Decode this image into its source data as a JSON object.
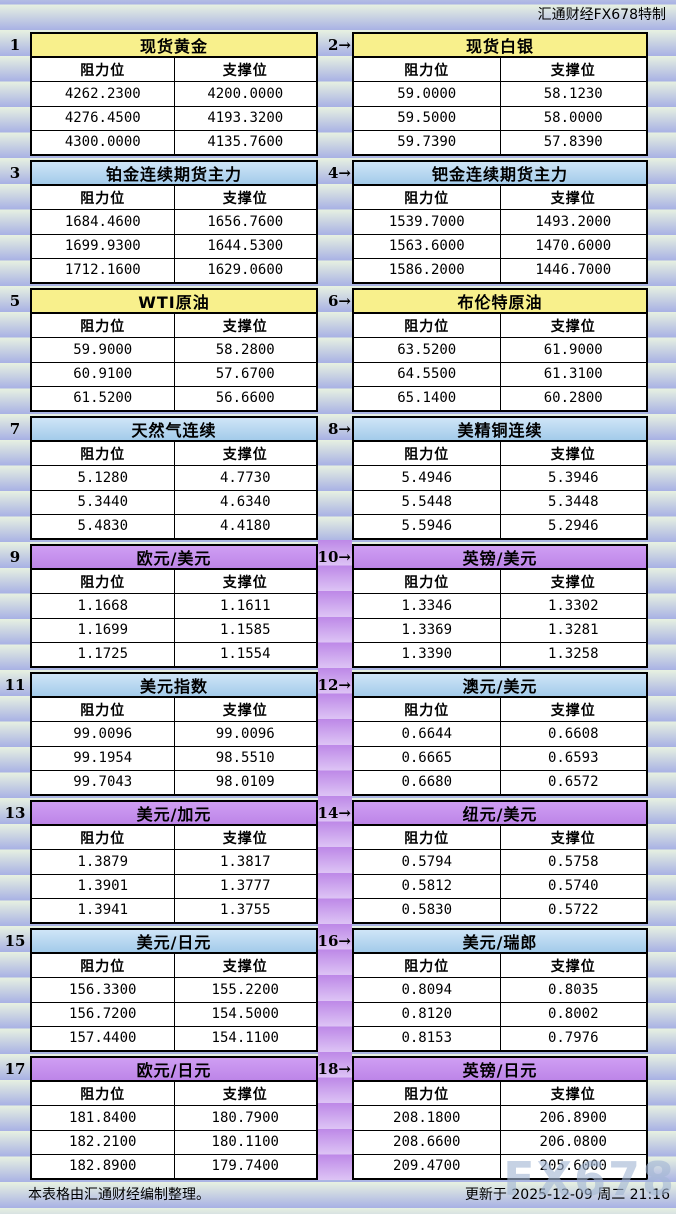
{
  "header": {
    "brand": "汇通财经FX678特制"
  },
  "footer": {
    "source_note": "本表格由汇通财经编制整理。",
    "update_time": "更新于 2025-12-09 周二 21:16"
  },
  "watermark": "FX678",
  "labels": {
    "resistance": "阻力位",
    "support": "支撑位"
  },
  "colors": {
    "title_yellow": "#f8f08c",
    "title_blue": "#b4d6ee",
    "title_purple": "#c792ee",
    "stripe_light": "#e7f1e1",
    "stripe_dark": "#a8b1e4",
    "purple_stripe_dark": "#bd88e7",
    "purple_stripe_light": "#ddc4f5"
  },
  "chart_data": [
    {
      "type": "table",
      "num": "1",
      "title": "现货黄金",
      "style": "yellow",
      "columns": [
        "阻力位",
        "支撑位"
      ],
      "rows": [
        [
          "4262.2300",
          "4200.0000"
        ],
        [
          "4276.4500",
          "4193.3200"
        ],
        [
          "4300.0000",
          "4135.7600"
        ]
      ]
    },
    {
      "type": "table",
      "num": "2→",
      "title": "现货白银",
      "style": "yellow",
      "columns": [
        "阻力位",
        "支撑位"
      ],
      "rows": [
        [
          "59.0000",
          "58.1230"
        ],
        [
          "59.5000",
          "58.0000"
        ],
        [
          "59.7390",
          "57.8390"
        ]
      ]
    },
    {
      "type": "table",
      "num": "3",
      "title": "铂金连续期货主力",
      "style": "blue",
      "columns": [
        "阻力位",
        "支撑位"
      ],
      "rows": [
        [
          "1684.4600",
          "1656.7600"
        ],
        [
          "1699.9300",
          "1644.5300"
        ],
        [
          "1712.1600",
          "1629.0600"
        ]
      ]
    },
    {
      "type": "table",
      "num": "4→",
      "title": "钯金连续期货主力",
      "style": "blue",
      "columns": [
        "阻力位",
        "支撑位"
      ],
      "rows": [
        [
          "1539.7000",
          "1493.2000"
        ],
        [
          "1563.6000",
          "1470.6000"
        ],
        [
          "1586.2000",
          "1446.7000"
        ]
      ]
    },
    {
      "type": "table",
      "num": "5",
      "title": "WTI原油",
      "style": "yellow",
      "columns": [
        "阻力位",
        "支撑位"
      ],
      "rows": [
        [
          "59.9000",
          "58.2800"
        ],
        [
          "60.9100",
          "57.6700"
        ],
        [
          "61.5200",
          "56.6600"
        ]
      ]
    },
    {
      "type": "table",
      "num": "6→",
      "title": "布伦特原油",
      "style": "yellow",
      "columns": [
        "阻力位",
        "支撑位"
      ],
      "rows": [
        [
          "63.5200",
          "61.9000"
        ],
        [
          "64.5500",
          "61.3100"
        ],
        [
          "65.1400",
          "60.2800"
        ]
      ]
    },
    {
      "type": "table",
      "num": "7",
      "title": "天然气连续",
      "style": "blue",
      "columns": [
        "阻力位",
        "支撑位"
      ],
      "rows": [
        [
          "5.1280",
          "4.7730"
        ],
        [
          "5.3440",
          "4.6340"
        ],
        [
          "5.4830",
          "4.4180"
        ]
      ]
    },
    {
      "type": "table",
      "num": "8→",
      "title": "美精铜连续",
      "style": "blue",
      "columns": [
        "阻力位",
        "支撑位"
      ],
      "rows": [
        [
          "5.4946",
          "5.3946"
        ],
        [
          "5.5448",
          "5.3448"
        ],
        [
          "5.5946",
          "5.2946"
        ]
      ]
    },
    {
      "type": "table",
      "num": "9",
      "title": "欧元/美元",
      "style": "purple",
      "columns": [
        "阻力位",
        "支撑位"
      ],
      "rows": [
        [
          "1.1668",
          "1.1611"
        ],
        [
          "1.1699",
          "1.1585"
        ],
        [
          "1.1725",
          "1.1554"
        ]
      ]
    },
    {
      "type": "table",
      "num": "10→",
      "title": "英镑/美元",
      "style": "purple",
      "columns": [
        "阻力位",
        "支撑位"
      ],
      "rows": [
        [
          "1.3346",
          "1.3302"
        ],
        [
          "1.3369",
          "1.3281"
        ],
        [
          "1.3390",
          "1.3258"
        ]
      ]
    },
    {
      "type": "table",
      "num": "11",
      "title": "美元指数",
      "style": "blue",
      "columns": [
        "阻力位",
        "支撑位"
      ],
      "rows": [
        [
          "99.0096",
          "99.0096"
        ],
        [
          "99.1954",
          "98.5510"
        ],
        [
          "99.7043",
          "98.0109"
        ]
      ]
    },
    {
      "type": "table",
      "num": "12→",
      "title": "澳元/美元",
      "style": "blue",
      "columns": [
        "阻力位",
        "支撑位"
      ],
      "rows": [
        [
          "0.6644",
          "0.6608"
        ],
        [
          "0.6665",
          "0.6593"
        ],
        [
          "0.6680",
          "0.6572"
        ]
      ]
    },
    {
      "type": "table",
      "num": "13",
      "title": "美元/加元",
      "style": "purple",
      "columns": [
        "阻力位",
        "支撑位"
      ],
      "rows": [
        [
          "1.3879",
          "1.3817"
        ],
        [
          "1.3901",
          "1.3777"
        ],
        [
          "1.3941",
          "1.3755"
        ]
      ]
    },
    {
      "type": "table",
      "num": "14→",
      "title": "纽元/美元",
      "style": "purple",
      "columns": [
        "阻力位",
        "支撑位"
      ],
      "rows": [
        [
          "0.5794",
          "0.5758"
        ],
        [
          "0.5812",
          "0.5740"
        ],
        [
          "0.5830",
          "0.5722"
        ]
      ]
    },
    {
      "type": "table",
      "num": "15",
      "title": "美元/日元",
      "style": "blue",
      "columns": [
        "阻力位",
        "支撑位"
      ],
      "rows": [
        [
          "156.3300",
          "155.2200"
        ],
        [
          "156.7200",
          "154.5000"
        ],
        [
          "157.4400",
          "154.1100"
        ]
      ]
    },
    {
      "type": "table",
      "num": "16→",
      "title": "美元/瑞郎",
      "style": "blue",
      "columns": [
        "阻力位",
        "支撑位"
      ],
      "rows": [
        [
          "0.8094",
          "0.8035"
        ],
        [
          "0.8120",
          "0.8002"
        ],
        [
          "0.8153",
          "0.7976"
        ]
      ]
    },
    {
      "type": "table",
      "num": "17",
      "title": "欧元/日元",
      "style": "purple",
      "columns": [
        "阻力位",
        "支撑位"
      ],
      "rows": [
        [
          "181.8400",
          "180.7900"
        ],
        [
          "182.2100",
          "180.1100"
        ],
        [
          "182.8900",
          "179.7400"
        ]
      ]
    },
    {
      "type": "table",
      "num": "18→",
      "title": "英镑/日元",
      "style": "purple",
      "columns": [
        "阻力位",
        "支撑位"
      ],
      "rows": [
        [
          "208.1800",
          "206.8900"
        ],
        [
          "208.6600",
          "206.0800"
        ],
        [
          "209.4700",
          "205.6000"
        ]
      ]
    }
  ]
}
